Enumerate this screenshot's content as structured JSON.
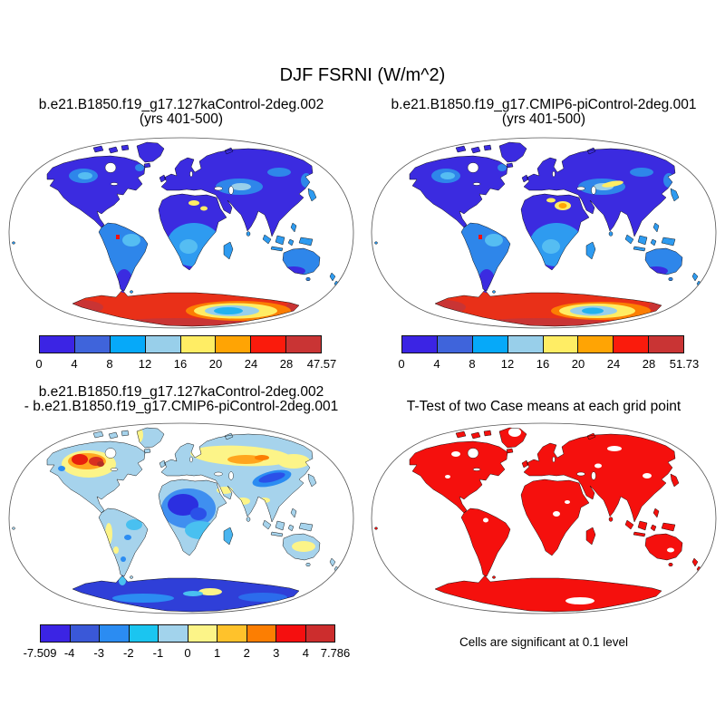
{
  "figure": {
    "title": "DJF FSRNI (W/m^2)",
    "background": "#ffffff",
    "projection": "robinson"
  },
  "panels": [
    {
      "name": "case1",
      "title_line1": "b.e21.B1850.f19_g17.127kaControl-2deg.002",
      "title_line2": "(yrs 401-500)",
      "colorbar": {
        "labels": [
          "0",
          "4",
          "8",
          "12",
          "16",
          "20",
          "24",
          "28",
          "47.57"
        ],
        "colors": [
          "#3B24E4",
          "#3F64DB",
          "#06A9F9",
          "#98CFEA",
          "#FFED64",
          "#FFA404",
          "#FA1B0C",
          "#C93434"
        ]
      }
    },
    {
      "name": "case2",
      "title_line1": "b.e21.B1850.f19_g17.CMIP6-piControl-2deg.001",
      "title_line2": "(yrs 401-500)",
      "colorbar": {
        "labels": [
          "0",
          "4",
          "8",
          "12",
          "16",
          "20",
          "24",
          "28",
          "51.73"
        ],
        "colors": [
          "#3B24E4",
          "#3F64DB",
          "#06A9F9",
          "#98CFEA",
          "#FFED64",
          "#FFA404",
          "#FA1B0C",
          "#C93434"
        ]
      }
    },
    {
      "name": "difference",
      "title_line1": "b.e21.B1850.f19_g17.127kaControl-2deg.002",
      "title_line2": "- b.e21.B1850.f19_g17.CMIP6-piControl-2deg.001",
      "colorbar": {
        "labels": [
          "-7.509",
          "-4",
          "-3",
          "-2",
          "-1",
          "0",
          "1",
          "2",
          "3",
          "4",
          "7.786"
        ],
        "colors": [
          "#3B24E4",
          "#3A58D8",
          "#2B8CF2",
          "#1BC5F0",
          "#A2D3EC",
          "#FCF488",
          "#FFC22B",
          "#FC7E02",
          "#F50F0F",
          "#CC2D2D"
        ]
      }
    },
    {
      "name": "ttest",
      "title_line1": "T-Test of two Case means at each grid point",
      "footnote": "Cells are significant at 0.1 level",
      "significant_color": "#F5100D"
    }
  ],
  "chart_data": [
    {
      "type": "heatmap",
      "panel": "top-left",
      "title": "b.e21.B1850.f19_g17.127kaControl-2deg.002 (yrs 401-500)",
      "variable": "DJF FSRNI",
      "units": "W/m^2",
      "colorbar_boundaries": [
        0,
        4,
        8,
        12,
        16,
        20,
        24,
        28
      ],
      "range_min": 0,
      "range_max": 47.57,
      "palette": [
        "#3B24E4",
        "#3F64DB",
        "#06A9F9",
        "#98CFEA",
        "#FFED64",
        "#FFA404",
        "#FA1B0C",
        "#C93434"
      ],
      "legend_position": "bottom",
      "visual_summary": "Land mostly 0-12 (blue shades); lighter blues over South America, southern Africa, Maritime Continent; small yellow spots in Sahara; red cell in Andes; Antarctica 24 to >28 (red/brick) with concentric orange-yellow-light blue interior minimum"
    },
    {
      "type": "heatmap",
      "panel": "top-right",
      "title": "b.e21.B1850.f19_g17.CMIP6-piControl-2deg.001 (yrs 401-500)",
      "variable": "DJF FSRNI",
      "units": "W/m^2",
      "colorbar_boundaries": [
        0,
        4,
        8,
        12,
        16,
        20,
        24,
        28
      ],
      "range_min": 0,
      "range_max": 51.73,
      "palette": [
        "#3B24E4",
        "#3F64DB",
        "#06A9F9",
        "#98CFEA",
        "#FFED64",
        "#FFA404",
        "#FA1B0C",
        "#C93434"
      ],
      "legend_position": "bottom",
      "visual_summary": "Pattern like top-left; orange/yellow patch in central Sahara, yellow streak in central Asia, Antarctica red with smaller blue interior minimum"
    },
    {
      "type": "heatmap",
      "panel": "bottom-left",
      "title": "b.e21.B1850.f19_g17.127kaControl-2deg.002 - b.e21.B1850.f19_g17.CMIP6-piControl-2deg.001",
      "variable": "DJF FSRNI difference",
      "units": "W/m^2",
      "colorbar_boundaries": [
        -4,
        -3,
        -2,
        -1,
        0,
        1,
        2,
        3,
        4
      ],
      "range_min": -7.509,
      "range_max": 7.786,
      "palette": [
        "#3B24E4",
        "#3A58D8",
        "#2B8CF2",
        "#1BC5F0",
        "#A2D3EC",
        "#FCF488",
        "#FFC22B",
        "#FC7E02",
        "#F50F0F",
        "#CC2D2D"
      ],
      "legend_position": "bottom",
      "visual_summary": "Land mostly -1 to 0 (pale blue); +2 to +4 (orange/red) over central North America; +1 to +2 (yellow/orange) band across northern Eurasia; -2 to -4 (dark blue) over West/Central Africa and central Asia; Antarctica -3 to -4 (dark blue) with small positive yellow spot"
    },
    {
      "type": "heatmap",
      "panel": "bottom-right",
      "title": "T-Test of two Case means at each grid point",
      "note": "Cells are significant at 0.1 level",
      "significance_level": 0.1,
      "significant_color": "#F5100D",
      "visual_summary": "Nearly all land cells significant (solid red) with scattered non-significant white holes"
    }
  ]
}
